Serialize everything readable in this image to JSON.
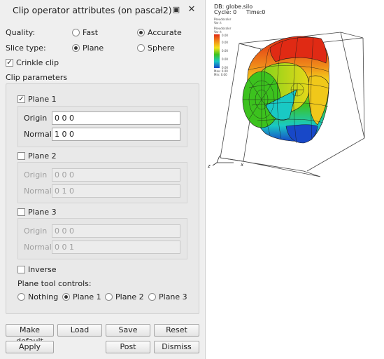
{
  "window": {
    "title": "Clip operator attributes (on pascal2)",
    "controls": [
      "minimize-icon",
      "maximize-icon",
      "close-icon"
    ]
  },
  "quality": {
    "label": "Quality:",
    "options": [
      "Fast",
      "Accurate"
    ],
    "selected": "Accurate"
  },
  "slice_type": {
    "label": "Slice type:",
    "options": [
      "Plane",
      "Sphere"
    ],
    "selected": "Plane"
  },
  "crinkle_clip": {
    "label": "Crinkle clip",
    "checked": true
  },
  "clip_parameters": {
    "label": "Clip parameters",
    "plane1": {
      "label": "Plane 1",
      "checked": true,
      "origin_label": "Origin",
      "origin": "0 0 0",
      "normal_label": "Normal",
      "normal": "1 0 0"
    },
    "plane2": {
      "label": "Plane 2",
      "checked": false,
      "origin_label": "Origin",
      "origin": "0 0 0",
      "normal_label": "Normal",
      "normal": "0 1 0"
    },
    "plane3": {
      "label": "Plane 3",
      "checked": false,
      "origin_label": "Origin",
      "origin": "0 0 0",
      "normal_label": "Normal",
      "normal": "0 0 1"
    },
    "inverse": {
      "label": "Inverse",
      "checked": false
    },
    "plane_tool": {
      "label": "Plane tool controls:",
      "options": [
        "Nothing",
        "Plane 1",
        "Plane 2",
        "Plane 3"
      ],
      "selected": "Plane 1"
    }
  },
  "buttons": {
    "make_default": "Make default",
    "load": "Load",
    "save": "Save",
    "reset": "Reset",
    "apply": "Apply",
    "post": "Post",
    "dismiss": "Dismiss"
  },
  "visualization": {
    "db": "DB: globe.silo",
    "cycle": "Cycle: 0",
    "time": "Time:0",
    "plot_line1": "Pseudocolor",
    "plot_line2": "Var: t",
    "legend_title": "Pseudocolor",
    "legend_var": "Var: t",
    "legend_ticks": [
      "0.00",
      "0.00",
      "0.00",
      "0.00",
      "0.00"
    ],
    "legend_max": "Max: 0.00",
    "legend_min": "Min: 0.00",
    "axis_z": "z",
    "axis_x": "x",
    "colors": {
      "red": "#e02a14",
      "yellow": "#f4e21a",
      "green": "#3cc21e",
      "cyan": "#19c9c4",
      "blue": "#1848c8"
    }
  }
}
